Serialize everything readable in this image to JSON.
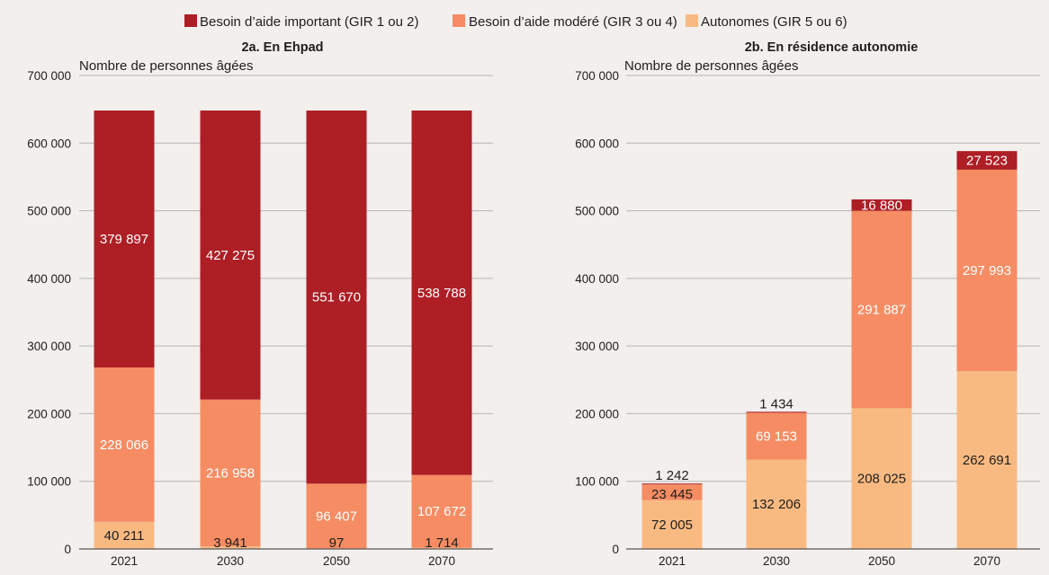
{
  "legend": [
    {
      "label": "Besoin d’aide important (GIR 1 ou 2)",
      "color": "#ad1e25"
    },
    {
      "label": "Besoin d’aide modéré (GIR 3 ou 4)",
      "color": "#f58c63"
    },
    {
      "label": "Autonomes (GIR 5 ou 6)",
      "color": "#f9ba82"
    }
  ],
  "chart_data": [
    {
      "type": "bar",
      "stacked": true,
      "title": "2a. En Ehpad",
      "ylabel": "Nombre de personnes âgées",
      "ylim": [
        0,
        700000
      ],
      "yticks": [
        0,
        100000,
        200000,
        300000,
        400000,
        500000,
        600000,
        700000
      ],
      "ytick_labels": [
        "0",
        "100 000",
        "200 000",
        "300 000",
        "400 000",
        "500 000",
        "600 000",
        "700 000"
      ],
      "grid": true,
      "categories": [
        "2021",
        "2030",
        "2050",
        "2070"
      ],
      "series": [
        {
          "name": "Autonomes (GIR 5 ou 6)",
          "color": "#f9ba82",
          "values": [
            40211,
            3941,
            97,
            1714
          ],
          "labels": [
            "40 211",
            "3 941",
            "97",
            "1 714"
          ]
        },
        {
          "name": "Besoin d’aide modéré (GIR 3 ou 4)",
          "color": "#f58c63",
          "values": [
            228066,
            216958,
            96407,
            107672
          ],
          "labels": [
            "228 066",
            "216 958",
            "96 407",
            "107 672"
          ]
        },
        {
          "name": "Besoin d’aide important (GIR 1 ou 2)",
          "color": "#ad1e25",
          "values": [
            379897,
            427275,
            551670,
            538788
          ],
          "labels": [
            "379 897",
            "427 275",
            "551 670",
            "538 788"
          ]
        }
      ]
    },
    {
      "type": "bar",
      "stacked": true,
      "title": "2b. En résidence autonomie",
      "ylabel": "Nombre de personnes âgées",
      "ylim": [
        0,
        700000
      ],
      "yticks": [
        0,
        100000,
        200000,
        300000,
        400000,
        500000,
        600000,
        700000
      ],
      "ytick_labels": [
        "0",
        "100 000",
        "200 000",
        "300 000",
        "400 000",
        "500 000",
        "600 000",
        "700 000"
      ],
      "grid": true,
      "categories": [
        "2021",
        "2030",
        "2050",
        "2070"
      ],
      "series": [
        {
          "name": "Autonomes (GIR 5 ou 6)",
          "color": "#f9ba82",
          "values": [
            72005,
            132206,
            208025,
            262691
          ],
          "labels": [
            "72 005",
            "132 206",
            "208 025",
            "262 691"
          ]
        },
        {
          "name": "Besoin d’aide modéré (GIR 3 ou 4)",
          "color": "#f58c63",
          "values": [
            23445,
            69153,
            291887,
            297993
          ],
          "labels": [
            "23 445",
            "69 153",
            "291 887",
            "297 993"
          ]
        },
        {
          "name": "Besoin d’aide important (GIR 1 ou 2)",
          "color": "#ad1e25",
          "values": [
            1242,
            1434,
            16880,
            27523
          ],
          "labels": [
            "1 242",
            "1 434",
            "16 880",
            "27 523"
          ]
        }
      ]
    }
  ]
}
